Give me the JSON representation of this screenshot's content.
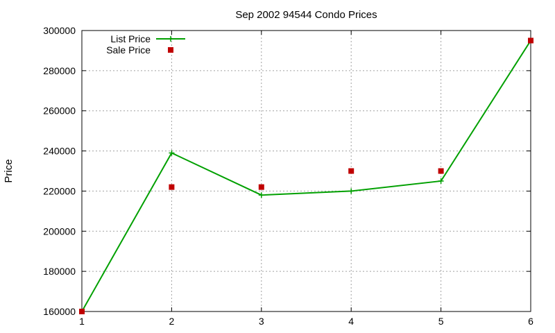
{
  "chart_data": {
    "type": "line",
    "title": "Sep 2002 94544 Condo Prices",
    "xlabel": "",
    "ylabel": "Price",
    "x": [
      1,
      2,
      3,
      4,
      5,
      6
    ],
    "xlim": [
      1,
      6
    ],
    "ylim": [
      160000,
      300000
    ],
    "xticks": [
      "1",
      "2",
      "3",
      "4",
      "5",
      "6"
    ],
    "yticks": [
      "160000",
      "180000",
      "200000",
      "220000",
      "240000",
      "260000",
      "280000",
      "300000"
    ],
    "grid": true,
    "legend_position": "top-left",
    "series": [
      {
        "name": "List Price",
        "style": "line-points",
        "color": "#00a000",
        "values": [
          160000,
          239000,
          218000,
          220000,
          225000,
          295000
        ]
      },
      {
        "name": "Sale Price",
        "style": "points",
        "color": "#c00000",
        "values": [
          160000,
          222000,
          222000,
          230000,
          230000,
          295000
        ]
      }
    ]
  }
}
